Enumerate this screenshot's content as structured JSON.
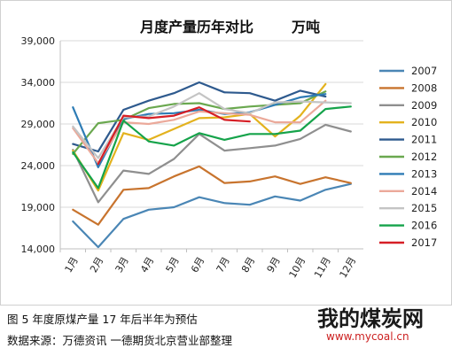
{
  "chart_data": {
    "type": "line",
    "title": "月度产量历年对比",
    "unit": "万吨",
    "categories": [
      "1月",
      "2月",
      "3月",
      "4月",
      "5月",
      "6月",
      "7月",
      "8月",
      "9月",
      "10月",
      "11月",
      "12月"
    ],
    "ylim": [
      14000,
      39000
    ],
    "yticks": [
      "14,000",
      "19,000",
      "24,000",
      "29,000",
      "34,000",
      "39,000"
    ],
    "ytick_values": [
      14000,
      19000,
      24000,
      29000,
      34000,
      39000
    ],
    "grid": true,
    "legend_position": "right",
    "series": [
      {
        "name": "2007",
        "color": "#4a86b5",
        "values": [
          17300,
          14200,
          17600,
          18700,
          19000,
          20200,
          19500,
          19300,
          20300,
          19800,
          21100,
          21800
        ]
      },
      {
        "name": "2008",
        "color": "#c8742e",
        "values": [
          18700,
          16900,
          21100,
          21300,
          22700,
          23900,
          21900,
          22100,
          22700,
          21800,
          22600,
          21900
        ]
      },
      {
        "name": "2009",
        "color": "#8f8f8f",
        "values": [
          25900,
          19600,
          23400,
          23000,
          24800,
          27800,
          25800,
          26100,
          26400,
          27200,
          28900,
          28100
        ]
      },
      {
        "name": "2010",
        "color": "#e3b21e",
        "values": [
          25800,
          21000,
          27900,
          27100,
          28400,
          29700,
          29800,
          30200,
          27500,
          30000,
          33800,
          null
        ]
      },
      {
        "name": "2011",
        "color": "#2e5a8e",
        "values": [
          26600,
          25700,
          30700,
          31800,
          32700,
          34000,
          32800,
          32700,
          31800,
          33000,
          32300,
          null
        ]
      },
      {
        "name": "2012",
        "color": "#6aa84f",
        "values": [
          25400,
          29100,
          29500,
          30900,
          31400,
          31500,
          30800,
          31100,
          31300,
          31500,
          32900,
          null
        ]
      },
      {
        "name": "2013",
        "color": "#2e7cb5",
        "values": [
          31000,
          23800,
          29600,
          30200,
          30300,
          30700,
          30200,
          30400,
          31300,
          32200,
          32600,
          null
        ]
      },
      {
        "name": "2014",
        "color": "#eba99a",
        "values": [
          28500,
          24300,
          29200,
          29000,
          29500,
          30500,
          30300,
          30100,
          29200,
          29200,
          31800,
          null
        ]
      },
      {
        "name": "2015",
        "color": "#c4c4c4",
        "values": [
          28700,
          24900,
          29800,
          29900,
          31100,
          32700,
          30800,
          30300,
          31600,
          31700,
          31600,
          31500
        ]
      },
      {
        "name": "2016",
        "color": "#15a34a",
        "values": [
          25600,
          21300,
          29400,
          26900,
          26400,
          27900,
          27100,
          27800,
          27800,
          28200,
          30800,
          31100
        ]
      },
      {
        "name": "2017",
        "color": "#d61f26",
        "values": [
          null,
          24200,
          30000,
          29700,
          30000,
          31000,
          29500,
          29300,
          null,
          null,
          null,
          null
        ]
      }
    ]
  },
  "caption": {
    "line1": "图 5  年度原煤产量    17 年后半年为预估",
    "line2": "数据来源：万德资讯  一德期货北京营业部整理"
  },
  "logo": {
    "main": "我的煤炭网",
    "url": "www.mycoal.cn"
  }
}
